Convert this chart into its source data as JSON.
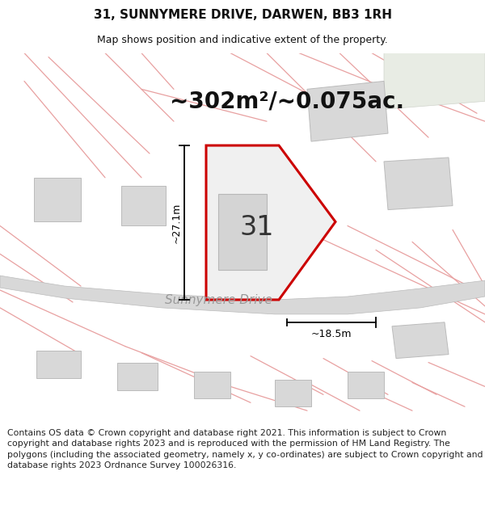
{
  "title": "31, SUNNYMERE DRIVE, DARWEN, BB3 1RH",
  "subtitle": "Map shows position and indicative extent of the property.",
  "area_label": "~302m²/~0.075ac.",
  "number_label": "31",
  "dim_vertical": "~27.1m",
  "dim_horizontal": "~18.5m",
  "street_label": "Sunnymere Drive",
  "footer": "Contains OS data © Crown copyright and database right 2021. This information is subject to Crown copyright and database rights 2023 and is reproduced with the permission of HM Land Registry. The polygons (including the associated geometry, namely x, y co-ordinates) are subject to Crown copyright and database rights 2023 Ordnance Survey 100026316.",
  "map_bg": "#ffffff",
  "property_fill": "#f0f0f0",
  "property_border": "#cc0000",
  "road_fill": "#d8d8d8",
  "road_edge": "#bbbbbb",
  "plot_line_color": "#e8a0a0",
  "building_fill": "#d8d8d8",
  "building_edge": "#bbbbbb",
  "greenish_fill": "#e8ece4",
  "title_fontsize": 11,
  "subtitle_fontsize": 9,
  "area_fontsize": 20,
  "number_fontsize": 24,
  "street_fontsize": 11,
  "dim_fontsize": 9,
  "footer_fontsize": 7.8
}
